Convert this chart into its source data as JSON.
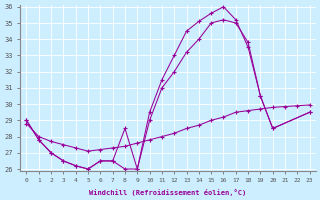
{
  "color": "#990099",
  "bg_color": "#cceeff",
  "xlabel": "Windchill (Refroidissement éolien,°C)",
  "ylim": [
    26,
    36
  ],
  "xlim": [
    -0.5,
    23.5
  ],
  "yticks": [
    26,
    27,
    28,
    29,
    30,
    31,
    32,
    33,
    34,
    35,
    36
  ],
  "xticks": [
    0,
    1,
    2,
    3,
    4,
    5,
    6,
    7,
    8,
    9,
    10,
    11,
    12,
    13,
    14,
    15,
    16,
    17,
    18,
    19,
    20,
    21,
    22,
    23
  ],
  "line1_x": [
    0,
    1,
    2,
    3,
    4,
    5,
    6,
    7,
    8,
    9,
    10,
    11,
    12,
    13,
    14,
    15,
    16,
    17,
    18,
    19,
    20,
    23
  ],
  "line1_y": [
    29,
    27.8,
    27.0,
    26.5,
    26.2,
    26.0,
    26.5,
    26.5,
    28.5,
    26.0,
    29.5,
    31.5,
    33.0,
    34.5,
    35.1,
    35.6,
    36.0,
    35.2,
    33.5,
    30.5,
    28.5,
    29.5
  ],
  "line2_x": [
    0,
    1,
    2,
    3,
    4,
    5,
    6,
    7,
    8,
    9,
    10,
    11,
    12,
    13,
    14,
    15,
    16,
    17,
    18,
    19,
    20,
    23
  ],
  "line2_y": [
    29,
    27.8,
    27.0,
    26.5,
    26.2,
    26.0,
    26.5,
    26.5,
    26.0,
    26.0,
    29.0,
    31.0,
    32.0,
    33.2,
    34.0,
    35.0,
    35.2,
    35.0,
    33.8,
    30.5,
    28.5,
    29.5
  ],
  "line3_x": [
    0,
    1,
    2,
    3,
    4,
    5,
    6,
    7,
    8,
    9,
    10,
    11,
    12,
    13,
    14,
    15,
    16,
    17,
    18,
    19,
    20,
    21,
    22,
    23
  ],
  "line3_y": [
    28.8,
    28.0,
    27.7,
    27.5,
    27.3,
    27.1,
    27.2,
    27.3,
    27.4,
    27.6,
    27.8,
    28.0,
    28.2,
    28.5,
    28.7,
    29.0,
    29.2,
    29.5,
    29.6,
    29.7,
    29.8,
    29.85,
    29.9,
    29.95
  ]
}
